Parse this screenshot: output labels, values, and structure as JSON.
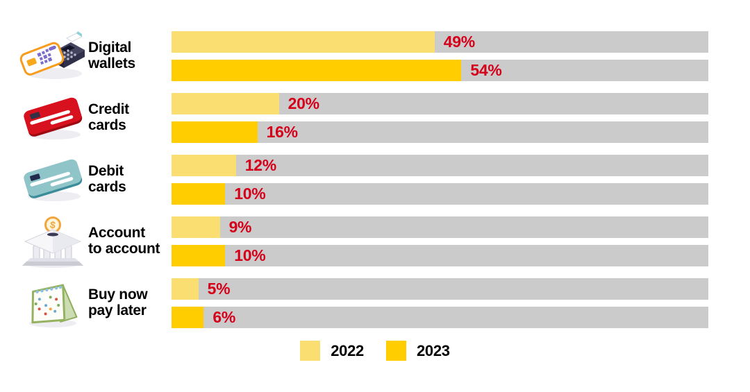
{
  "chart_data": {
    "type": "bar",
    "orientation": "horizontal",
    "title": "",
    "categories": [
      "Digital\nwallets",
      "Credit\ncards",
      "Debit\ncards",
      "Account\nto account",
      "Buy now\npay later"
    ],
    "category_icons": [
      "digital-wallets-icon",
      "credit-card-icon",
      "debit-card-icon",
      "bank-icon",
      "calendar-icon"
    ],
    "series": [
      {
        "name": "2022",
        "color": "#FBDE72",
        "values": [
          49,
          20,
          12,
          9,
          5
        ]
      },
      {
        "name": "2023",
        "color": "#FFCD00",
        "values": [
          54,
          16,
          10,
          10,
          6
        ]
      }
    ],
    "value_suffix": "%",
    "xlim": [
      0,
      100
    ],
    "grid": false,
    "track_color": "#CBCBCB",
    "value_label_color": "#D50019",
    "legend_position": "bottom"
  }
}
